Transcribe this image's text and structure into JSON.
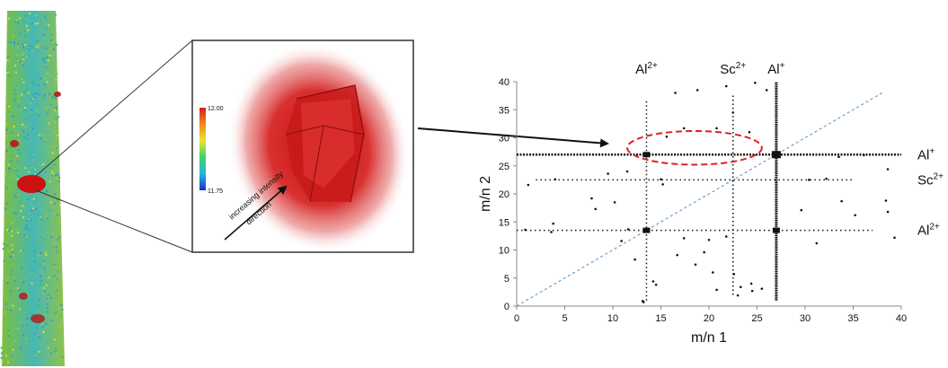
{
  "left_panel": {
    "colorbar": {
      "max_label": "12.00",
      "min_label": "11.75"
    },
    "arrow_text_line1": "increasing intensity",
    "arrow_text_line2": "direction",
    "colors": {
      "peak": "#cc1111",
      "tip_green": "#7fbf3a",
      "tip_cyan": "#34b6c9"
    }
  },
  "chart_data": {
    "type": "scatter",
    "xlabel": "m/n 1",
    "ylabel": "m/n 2",
    "xlim": [
      0,
      40
    ],
    "ylim": [
      0,
      40
    ],
    "xticks": [
      0,
      5,
      10,
      15,
      20,
      25,
      30,
      35,
      40
    ],
    "yticks": [
      0,
      5,
      10,
      15,
      20,
      25,
      30,
      35,
      40
    ],
    "top_labels": [
      {
        "base": "Al",
        "sup": "2+",
        "x": 13.5
      },
      {
        "base": "Sc",
        "sup": "2+",
        "x": 22.5
      },
      {
        "base": "Al",
        "sup": "+",
        "x": 27
      }
    ],
    "right_labels": [
      {
        "base": "Al",
        "sup": "+",
        "y": 27
      },
      {
        "base": "Sc",
        "sup": "2+",
        "y": 22.5
      },
      {
        "base": "Al",
        "sup": "2+",
        "y": 13.5
      }
    ],
    "diagonal": {
      "from": [
        0,
        0
      ],
      "to": [
        38,
        38
      ],
      "color": "#6a9ec9",
      "style": "dashed"
    },
    "ellipse": {
      "cx": 18.5,
      "cy": 28.2,
      "rx": 7,
      "ry": 3,
      "color": "#e02020",
      "style": "dashed"
    },
    "dense_lines": [
      {
        "orientation": "vertical",
        "x": 27,
        "y_from": 1,
        "y_to": 40
      },
      {
        "orientation": "horizontal",
        "y": 27,
        "x_from": 0,
        "x_to": 40
      },
      {
        "orientation": "vertical",
        "x": 13.5,
        "y_from": 1,
        "y_to": 37
      },
      {
        "orientation": "horizontal",
        "y": 13.5,
        "x_from": 0,
        "x_to": 37
      },
      {
        "orientation": "vertical",
        "x": 22.5,
        "y_from": 2,
        "y_to": 38
      },
      {
        "orientation": "horizontal",
        "y": 22.5,
        "x_from": 2,
        "x_to": 35
      }
    ],
    "clusters": [
      {
        "x": 27,
        "y": 27
      },
      {
        "x": 13.5,
        "y": 27
      },
      {
        "x": 27,
        "y": 13.5
      },
      {
        "x": 13.5,
        "y": 13.5
      }
    ],
    "scattered_points": [
      [
        16.5,
        38
      ],
      [
        18.8,
        38.5
      ],
      [
        21.8,
        39.2
      ],
      [
        24.8,
        39.8
      ],
      [
        26,
        38.5
      ],
      [
        17.4,
        31.7
      ],
      [
        15.6,
        30.2
      ],
      [
        20.8,
        31.7
      ],
      [
        22.5,
        34.5
      ],
      [
        24.2,
        31
      ],
      [
        11.5,
        24
      ],
      [
        9.5,
        23.6
      ],
      [
        7.8,
        19.2
      ],
      [
        10.2,
        18.5
      ],
      [
        4,
        22.6
      ],
      [
        1.2,
        21.6
      ],
      [
        8.2,
        17.3
      ],
      [
        15,
        22.6
      ],
      [
        15.2,
        21.7
      ],
      [
        17.4,
        12.1
      ],
      [
        20,
        11.8
      ],
      [
        21.8,
        12.4
      ],
      [
        16.7,
        9.1
      ],
      [
        19.5,
        9.6
      ],
      [
        18.6,
        7.4
      ],
      [
        20.4,
        6
      ],
      [
        22.6,
        5.7
      ],
      [
        23,
        1.9
      ],
      [
        14.5,
        3.8
      ],
      [
        20.8,
        2.9
      ],
      [
        24.4,
        4
      ],
      [
        33.8,
        18.7
      ],
      [
        35.2,
        16.2
      ],
      [
        38.4,
        18.8
      ],
      [
        38.6,
        16.8
      ],
      [
        39.3,
        12.2
      ],
      [
        38.6,
        24.4
      ],
      [
        30.4,
        22.5
      ],
      [
        32.2,
        22.7
      ],
      [
        29.6,
        17.1
      ],
      [
        31.2,
        11.2
      ],
      [
        3.8,
        14.7
      ],
      [
        3.6,
        13.2
      ],
      [
        0.9,
        13.6
      ],
      [
        13.1,
        0.9
      ],
      [
        13.2,
        0.7
      ],
      [
        25.5,
        3.1
      ],
      [
        24.5,
        2.7
      ],
      [
        23.3,
        3.4
      ],
      [
        11.6,
        13.7
      ],
      [
        12.3,
        8.3
      ],
      [
        10.9,
        11.6
      ],
      [
        14.2,
        4.4
      ],
      [
        33.5,
        26.6
      ],
      [
        36.1,
        26.9
      ]
    ]
  }
}
